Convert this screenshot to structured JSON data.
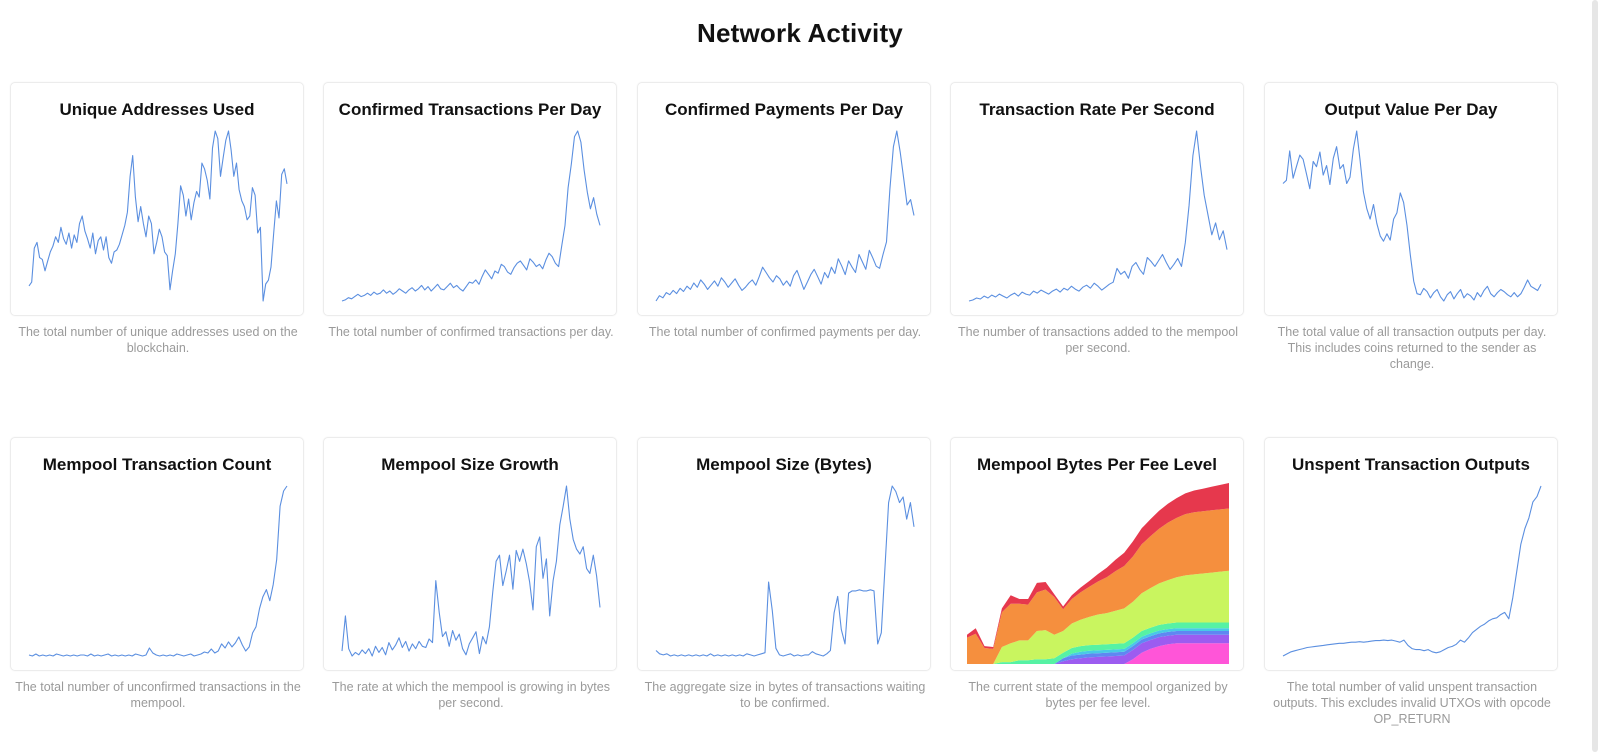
{
  "page": {
    "title": "Network Activity"
  },
  "colors": {
    "line": "#5b8fe0",
    "card_border": "#ececec",
    "description": "#9a9a9a"
  },
  "cards": [
    {
      "id": "unique-addresses",
      "title": "Unique Addresses Used",
      "description": "The total number of unique addresses used on the blockchain."
    },
    {
      "id": "confirmed-transactions",
      "title": "Confirmed Transactions Per Day",
      "description": "The total number of confirmed transactions per day."
    },
    {
      "id": "confirmed-payments",
      "title": "Confirmed Payments Per Day",
      "description": "The total number of confirmed payments per day."
    },
    {
      "id": "transaction-rate",
      "title": "Transaction Rate Per Second",
      "description": "The number of transactions added to the mempool per second."
    },
    {
      "id": "output-value",
      "title": "Output Value Per Day",
      "description": "The total value of all transaction outputs per day. This includes coins returned to the sender as change."
    },
    {
      "id": "mempool-count",
      "title": "Mempool Transaction Count",
      "description": "The total number of unconfirmed transactions in the mempool."
    },
    {
      "id": "mempool-growth",
      "title": "Mempool Size Growth",
      "description": "The rate at which the mempool is growing in bytes per second."
    },
    {
      "id": "mempool-size",
      "title": "Mempool Size (Bytes)",
      "description": "The aggregate size in bytes of transactions waiting to be confirmed."
    },
    {
      "id": "mempool-fee-levels",
      "title": "Mempool Bytes Per Fee Level",
      "description": "The current state of the mempool organized by bytes per fee level."
    },
    {
      "id": "utxo",
      "title": "Unspent Transaction Outputs",
      "description": "The total number of valid unspent transaction outputs. This excludes invalid UTXOs with opcode OP_RETURN"
    }
  ],
  "chart_data": [
    {
      "type": "line",
      "title": "Unique Addresses Used",
      "grid": false,
      "legend": "none",
      "values": [
        21,
        23,
        41,
        44,
        36,
        35,
        29,
        34,
        39,
        42,
        47,
        44,
        52,
        46,
        43,
        49,
        41,
        48,
        44,
        54,
        58,
        50,
        46,
        41,
        49,
        38,
        45,
        47,
        40,
        47,
        36,
        33,
        39,
        40,
        43,
        48,
        53,
        60,
        79,
        90,
        68,
        55,
        63,
        54,
        47,
        58,
        54,
        38,
        44,
        51,
        47,
        39,
        37,
        19,
        29,
        38,
        54,
        74,
        69,
        58,
        67,
        56,
        65,
        71,
        68,
        86,
        83,
        77,
        67,
        94,
        103,
        99,
        79,
        89,
        98,
        103,
        93,
        79,
        86,
        72,
        66,
        63,
        56,
        58,
        73,
        69,
        49,
        52,
        13,
        22,
        24,
        31,
        49,
        66,
        57,
        80,
        83,
        75
      ]
    },
    {
      "type": "line",
      "title": "Confirmed Transactions Per Day",
      "grid": false,
      "legend": "none",
      "values": [
        2,
        3,
        5,
        4,
        6,
        8,
        6,
        7,
        9,
        7,
        10,
        8,
        9,
        12,
        9,
        11,
        8,
        10,
        13,
        11,
        9,
        12,
        14,
        11,
        13,
        16,
        12,
        15,
        11,
        14,
        17,
        13,
        12,
        15,
        18,
        14,
        16,
        13,
        11,
        15,
        19,
        18,
        21,
        17,
        24,
        30,
        26,
        22,
        29,
        27,
        35,
        33,
        28,
        26,
        32,
        36,
        38,
        34,
        30,
        40,
        37,
        33,
        35,
        31,
        39,
        45,
        42,
        36,
        33,
        52,
        70,
        104,
        125,
        150,
        155,
        145,
        120,
        100,
        85,
        95,
        80,
        70
      ]
    },
    {
      "type": "line",
      "title": "Confirmed Payments Per Day",
      "grid": false,
      "legend": "none",
      "values": [
        4,
        9,
        7,
        12,
        10,
        14,
        11,
        16,
        13,
        18,
        15,
        21,
        17,
        24,
        20,
        15,
        19,
        23,
        18,
        26,
        22,
        17,
        21,
        25,
        19,
        14,
        17,
        21,
        24,
        19,
        27,
        36,
        31,
        26,
        22,
        28,
        25,
        19,
        23,
        18,
        28,
        33,
        24,
        15,
        22,
        29,
        34,
        27,
        20,
        31,
        26,
        36,
        30,
        44,
        37,
        29,
        42,
        36,
        31,
        48,
        41,
        34,
        52,
        45,
        37,
        35,
        48,
        60,
        110,
        150,
        165,
        145,
        120,
        95,
        100,
        85
      ]
    },
    {
      "type": "line",
      "title": "Transaction Rate Per Second",
      "grid": false,
      "legend": "none",
      "values": [
        3,
        4,
        6,
        5,
        8,
        6,
        9,
        7,
        10,
        8,
        6,
        9,
        11,
        8,
        12,
        10,
        9,
        13,
        11,
        14,
        12,
        10,
        13,
        15,
        12,
        16,
        14,
        18,
        15,
        13,
        17,
        19,
        16,
        21,
        18,
        14,
        17,
        20,
        22,
        36,
        30,
        33,
        26,
        38,
        42,
        35,
        30,
        47,
        43,
        38,
        44,
        50,
        42,
        35,
        40,
        46,
        38,
        62,
        100,
        150,
        175,
        140,
        110,
        90,
        70,
        82,
        65,
        74,
        55
      ]
    },
    {
      "type": "line",
      "title": "Output Value Per Day",
      "grid": false,
      "legend": "none",
      "values": [
        128,
        131,
        159,
        133,
        144,
        155,
        151,
        137,
        123,
        149,
        144,
        158,
        136,
        145,
        127,
        152,
        163,
        142,
        146,
        128,
        134,
        161,
        178,
        150,
        120,
        104,
        94,
        108,
        90,
        78,
        73,
        80,
        74,
        94,
        100,
        119,
        110,
        88,
        60,
        35,
        23,
        22,
        28,
        25,
        19,
        24,
        27,
        20,
        16,
        22,
        25,
        18,
        23,
        27,
        19,
        23,
        21,
        17,
        24,
        20,
        26,
        30,
        23,
        20,
        24,
        27,
        25,
        22,
        20,
        24,
        20,
        23,
        29,
        36,
        30,
        28,
        26,
        32
      ]
    },
    {
      "type": "line",
      "title": "Mempool Transaction Count",
      "grid": false,
      "legend": "none",
      "values": [
        2,
        1,
        3,
        1,
        2,
        1,
        2,
        1,
        3,
        2,
        1,
        2,
        1,
        2,
        1,
        2,
        2,
        1,
        3,
        1,
        2,
        1,
        2,
        3,
        1,
        2,
        1,
        2,
        1,
        2,
        1,
        3,
        2,
        1,
        2,
        9,
        4,
        2,
        1,
        2,
        1,
        2,
        1,
        3,
        2,
        1,
        2,
        3,
        1,
        2,
        3,
        5,
        4,
        8,
        4,
        6,
        13,
        9,
        15,
        10,
        14,
        20,
        12,
        6,
        10,
        24,
        30,
        48,
        60,
        67,
        56,
        72,
        97,
        150,
        165,
        170
      ]
    },
    {
      "type": "line",
      "title": "Mempool Size Growth",
      "grid": false,
      "legend": "none",
      "values": [
        16,
        45,
        18,
        12,
        15,
        13,
        17,
        14,
        18,
        12,
        20,
        15,
        19,
        13,
        23,
        17,
        21,
        27,
        19,
        24,
        16,
        22,
        18,
        24,
        20,
        19,
        26,
        23,
        74,
        48,
        28,
        32,
        20,
        33,
        25,
        30,
        18,
        13,
        22,
        27,
        32,
        14,
        28,
        22,
        36,
        65,
        90,
        95,
        70,
        82,
        95,
        67,
        99,
        90,
        100,
        88,
        73,
        50,
        102,
        110,
        76,
        92,
        45,
        74,
        90,
        120,
        135,
        152,
        125,
        108,
        100,
        96,
        102,
        84,
        80,
        95,
        78,
        52
      ]
    },
    {
      "type": "line",
      "title": "Mempool Size (Bytes)",
      "grid": false,
      "legend": "none",
      "values": [
        6,
        3,
        2,
        3,
        1,
        2,
        1,
        2,
        1,
        2,
        1,
        2,
        1,
        2,
        1,
        3,
        1,
        2,
        1,
        2,
        1,
        2,
        1,
        2,
        1,
        3,
        2,
        1,
        2,
        3,
        4,
        68,
        42,
        8,
        2,
        1,
        2,
        3,
        1,
        2,
        1,
        2,
        2,
        5,
        3,
        2,
        1,
        3,
        6,
        40,
        55,
        25,
        12,
        58,
        60,
        60,
        61,
        60,
        60,
        61,
        60,
        12,
        22,
        80,
        140,
        155,
        150,
        140,
        145,
        125,
        140,
        118
      ]
    },
    {
      "type": "area",
      "title": "Mempool Bytes Per Fee Level",
      "grid": false,
      "legend": "none",
      "x": [
        0,
        1,
        2,
        3,
        4,
        5,
        6,
        7,
        8,
        9,
        10,
        11,
        12,
        13,
        14,
        15,
        16,
        17,
        18,
        19,
        20,
        21,
        22,
        23,
        24,
        25,
        26,
        27,
        28,
        29,
        30
      ],
      "series": [
        {
          "color": "#ff55d8",
          "values": [
            0,
            0,
            0,
            0,
            0,
            0,
            0,
            0,
            0,
            0,
            0,
            0,
            0,
            0,
            0,
            0,
            0,
            0,
            0,
            5,
            12,
            16,
            19,
            21,
            22,
            22,
            22,
            22,
            22,
            22,
            22
          ]
        },
        {
          "color": "#9c5cf0",
          "values": [
            0,
            0,
            0,
            0,
            0,
            0,
            0,
            0,
            0,
            0,
            0,
            3,
            5,
            6,
            7,
            7.5,
            8,
            8.5,
            9,
            10,
            10,
            9.5,
            9.5,
            9,
            9,
            9,
            9,
            9,
            9,
            9,
            9
          ]
        },
        {
          "color": "#5f87f2",
          "values": [
            0,
            0,
            0,
            0,
            0,
            0,
            0,
            0,
            0,
            0,
            0,
            3,
            4,
            4,
            4,
            4,
            4,
            4,
            4,
            4,
            4,
            4,
            4,
            4,
            4,
            4,
            4,
            4,
            4,
            4,
            4
          ]
        },
        {
          "color": "#48c9e6",
          "values": [
            0,
            0,
            0,
            0,
            0,
            0,
            0,
            0,
            0,
            0,
            0,
            0,
            2,
            3,
            3,
            3,
            3,
            3,
            3,
            3,
            3,
            3,
            3,
            3,
            3,
            3,
            3,
            3,
            3,
            3,
            3
          ]
        },
        {
          "color": "#56f2a4",
          "values": [
            0,
            0,
            0,
            0,
            2,
            2,
            4,
            4,
            5,
            5,
            6,
            6,
            6,
            6,
            6,
            6,
            6,
            6,
            6,
            6,
            6,
            6,
            6,
            6,
            6,
            6,
            6,
            6,
            6,
            6,
            6
          ]
        },
        {
          "color": "#c9f55f",
          "values": [
            0,
            0,
            0,
            0,
            16,
            20,
            21,
            21,
            30,
            31,
            25,
            23,
            26,
            28,
            30,
            32,
            33,
            35,
            37,
            38,
            40,
            42,
            44,
            46,
            48,
            50,
            51,
            52,
            53,
            54,
            55
          ]
        },
        {
          "color": "#f58f3e",
          "values": [
            28,
            32,
            17,
            16,
            37,
            42,
            39,
            38,
            41,
            43,
            40,
            23,
            26,
            29,
            32,
            35,
            38,
            42,
            45,
            48,
            52,
            55,
            58,
            61,
            63,
            65,
            66,
            66,
            66,
            66,
            66
          ]
        },
        {
          "color": "#e6384d",
          "values": [
            3,
            6,
            2,
            2,
            4,
            9,
            5,
            6,
            10,
            8,
            3,
            3,
            4,
            5,
            6,
            8,
            10,
            12,
            14,
            16,
            17,
            18,
            19,
            20,
            21,
            22,
            23,
            24,
            25,
            26,
            27
          ]
        }
      ]
    },
    {
      "type": "line",
      "title": "Unspent Transaction Outputs",
      "grid": false,
      "legend": "none",
      "values": [
        5,
        7,
        9,
        10,
        11,
        12,
        13,
        13.5,
        14,
        14.5,
        15,
        15.5,
        16,
        16.5,
        17,
        17,
        17.5,
        18,
        18,
        18.5,
        18,
        18.5,
        19,
        19.5,
        19.5,
        20,
        19.5,
        20,
        19,
        18,
        20,
        15,
        12,
        11,
        11,
        10,
        11,
        9,
        8,
        9,
        11,
        13,
        14,
        16,
        20,
        18,
        22,
        27,
        30,
        33,
        35,
        38,
        40,
        41,
        44,
        46,
        40,
        60,
        85,
        110,
        125,
        135,
        150,
        155,
        165
      ]
    }
  ]
}
